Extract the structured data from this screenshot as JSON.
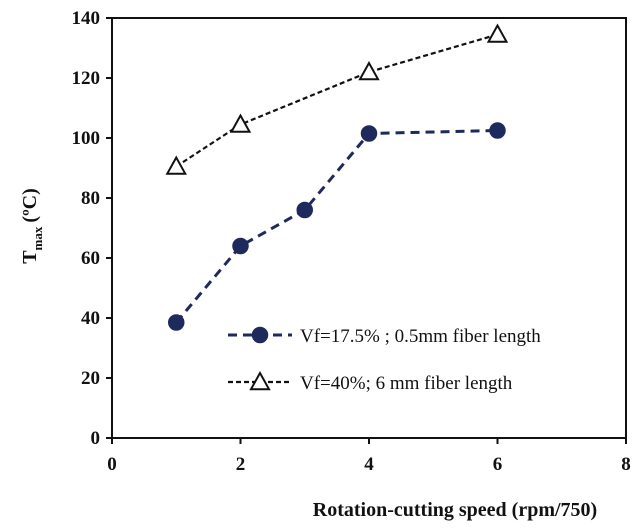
{
  "chart_data": {
    "type": "line",
    "title": "",
    "xlabel": "Rotation-cutting speed (rpm/750)",
    "ylabel_main": "T",
    "ylabel_sub": "max",
    "ylabel_unit": "(ºC)",
    "xlim": [
      0,
      8
    ],
    "ylim": [
      0,
      140
    ],
    "xticks": [
      0,
      2,
      4,
      6,
      8
    ],
    "yticks": [
      0,
      20,
      40,
      60,
      80,
      100,
      120,
      140
    ],
    "grid": false,
    "legend_position": "bottom-right",
    "series": [
      {
        "name": "Vf=17.5% ; 0.5mm fiber length",
        "marker": "filled-circle",
        "line_style": "dashed",
        "color": "#1f2a5c",
        "x": [
          1,
          2,
          3,
          4,
          6
        ],
        "y": [
          38.5,
          64,
          76,
          101.5,
          102.5
        ]
      },
      {
        "name": "Vf=40%; 6 mm fiber length",
        "marker": "open-triangle",
        "line_style": "dashed",
        "color": "#111111",
        "x": [
          1,
          2,
          4,
          6
        ],
        "y": [
          90.5,
          104.5,
          122,
          134.5
        ]
      }
    ]
  }
}
